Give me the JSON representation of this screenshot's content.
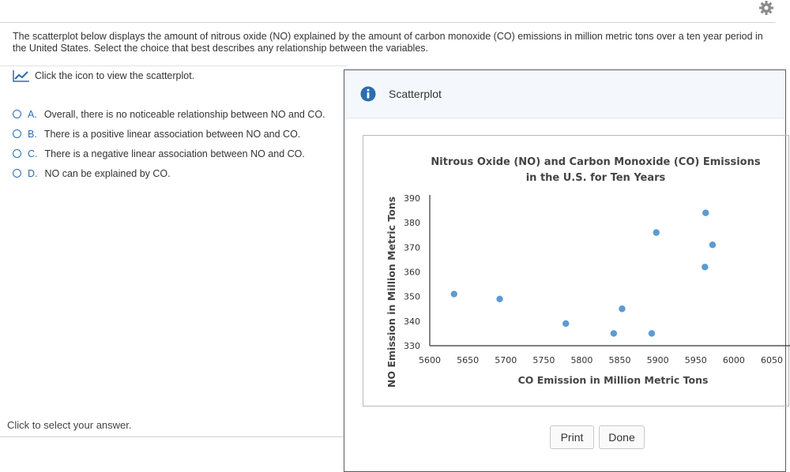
{
  "question": {
    "text": "The scatterplot below displays the amount of nitrous oxide (NO) explained by the amount of carbon monoxide (CO) emissions in million metric tons over a ten year period in the United States. Select the choice that best describes any relationship between the variables."
  },
  "icon_link": {
    "label": "Click the icon to view the scatterplot.",
    "icon": "line-chart-icon"
  },
  "choices": [
    {
      "letter": "A.",
      "text": "Overall, there is no noticeable relationship between NO and CO."
    },
    {
      "letter": "B.",
      "text": "There is a positive linear association between NO and CO."
    },
    {
      "letter": "C.",
      "text": "There is a negative linear association between NO and CO."
    },
    {
      "letter": "D.",
      "text": "NO can be explained by CO."
    }
  ],
  "footer": {
    "hint": "Click to select your answer."
  },
  "dialog": {
    "title": "Scatterplot",
    "icon": "info-icon",
    "print_label": "Print",
    "done_label": "Done"
  },
  "colors": {
    "accent": "#2a6db0",
    "point": "#5b9bd5"
  },
  "chart_data": {
    "type": "scatter",
    "title_lines": [
      "Nitrous Oxide (NO) and Carbon Monoxide (CO) Emissions",
      "in the U.S. for Ten Years"
    ],
    "xlabel": "CO Emission in Million Metric Tons",
    "ylabel": "NO Emission in Million Metric Tons",
    "xlim": [
      5600,
      6050
    ],
    "ylim": [
      330,
      390
    ],
    "x_ticks": [
      5600,
      5650,
      5700,
      5750,
      5800,
      5850,
      5900,
      5950,
      6000,
      6050
    ],
    "y_ticks": [
      330,
      340,
      350,
      360,
      370,
      380,
      390
    ],
    "points": [
      {
        "x": 5632,
        "y": 351
      },
      {
        "x": 5692,
        "y": 349
      },
      {
        "x": 5779,
        "y": 339
      },
      {
        "x": 5842,
        "y": 335
      },
      {
        "x": 5853,
        "y": 345
      },
      {
        "x": 5892,
        "y": 335
      },
      {
        "x": 5898,
        "y": 376
      },
      {
        "x": 5963,
        "y": 384
      },
      {
        "x": 5962,
        "y": 362
      },
      {
        "x": 5972,
        "y": 371
      }
    ]
  }
}
